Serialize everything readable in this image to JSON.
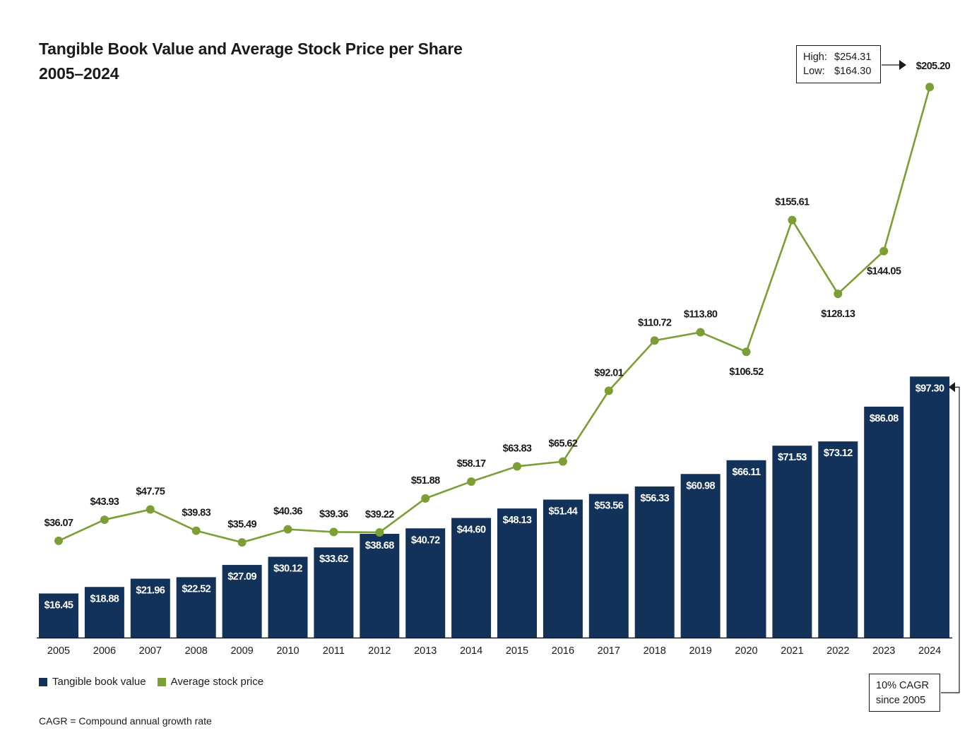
{
  "title": {
    "line1": "Tangible Book Value and Average Stock Price per Share",
    "line2": "2005–2024"
  },
  "legend": {
    "tbv_label": "Tangible book value",
    "price_label": "Average stock price"
  },
  "footnote": "CAGR = Compound annual growth rate",
  "high_low_box": {
    "high_label": "High:",
    "high_value": "$254.31",
    "low_label": "Low:",
    "low_value": "$164.30"
  },
  "cagr_box": {
    "line1": "10% CAGR",
    "line2": "since 2005"
  },
  "colors": {
    "bar": "#13325a",
    "line": "#7b9e35",
    "text": "#1a1a1a",
    "bar_label": "#ffffff"
  },
  "chart_data": {
    "type": "bar",
    "title": "Tangible Book Value and Average Stock Price per Share 2005–2024",
    "categories": [
      "2005",
      "2006",
      "2007",
      "2008",
      "2009",
      "2010",
      "2011",
      "2012",
      "2013",
      "2014",
      "2015",
      "2016",
      "2017",
      "2018",
      "2019",
      "2020",
      "2021",
      "2022",
      "2023",
      "2024"
    ],
    "series": [
      {
        "name": "Tangible book value",
        "type": "bar",
        "values": [
          16.45,
          18.88,
          21.96,
          22.52,
          27.09,
          30.12,
          33.62,
          38.68,
          40.72,
          44.6,
          48.13,
          51.44,
          53.56,
          56.33,
          60.98,
          66.11,
          71.53,
          73.12,
          86.08,
          97.3
        ],
        "labels": [
          "$16.45",
          "$18.88",
          "$21.96",
          "$22.52",
          "$27.09",
          "$30.12",
          "$33.62",
          "$38.68",
          "$40.72",
          "$44.60",
          "$48.13",
          "$51.44",
          "$53.56",
          "$56.33",
          "$60.98",
          "$66.11",
          "$71.53",
          "$73.12",
          "$86.08",
          "$97.30"
        ]
      },
      {
        "name": "Average stock price",
        "type": "line",
        "values": [
          36.07,
          43.93,
          47.75,
          39.83,
          35.49,
          40.36,
          39.36,
          39.22,
          51.88,
          58.17,
          63.83,
          65.62,
          92.01,
          110.72,
          113.8,
          106.52,
          155.61,
          128.13,
          144.05,
          205.2
        ],
        "labels": [
          "$36.07",
          "$43.93",
          "$47.75",
          "$39.83",
          "$35.49",
          "$40.36",
          "$39.36",
          "$39.22",
          "$51.88",
          "$58.17",
          "$63.83",
          "$65.62",
          "$92.01",
          "$110.72",
          "$113.80",
          "$106.52",
          "$155.61",
          "$128.13",
          "$144.05",
          "$205.20"
        ]
      }
    ],
    "legend_position": "bottom-left",
    "grid": false
  }
}
